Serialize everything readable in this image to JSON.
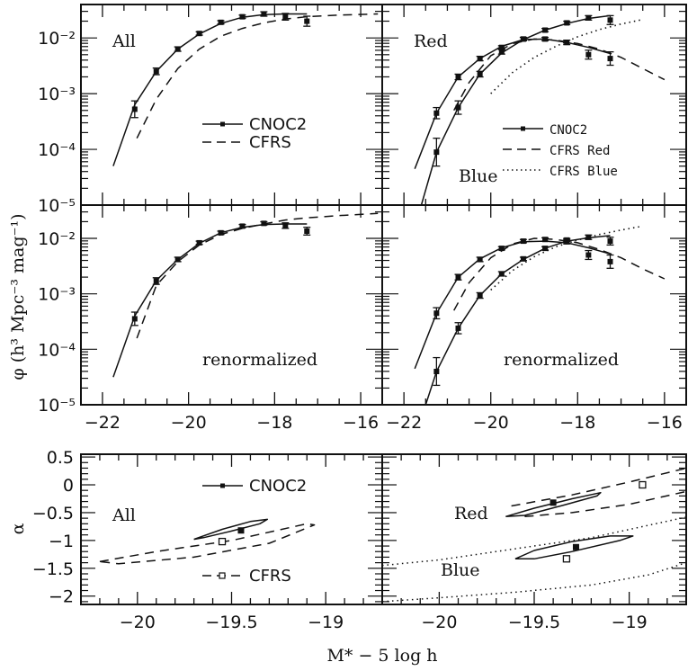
{
  "figure": {
    "ylabel_lf": "φ (h³ Mpc⁻³ mag⁻¹)",
    "ylabel_alpha": "α",
    "xlabel_bottom": "M* − 5 log h"
  },
  "colors": {
    "ink": "#111111",
    "background": "#ffffff"
  },
  "chart_data": [
    {
      "id": "lf-all",
      "type": "line",
      "title": "All",
      "xlim": [
        -22.5,
        -15.5
      ],
      "ylim_log10": [
        -5,
        -1.4
      ],
      "yscale": "log",
      "xticks": [
        -22,
        -20,
        -18,
        -16
      ],
      "yticks_labels": [
        "10⁻²",
        "10⁻³",
        "10⁻⁴",
        "10⁻⁵"
      ],
      "yticks": [
        -2,
        -3,
        -4,
        -5
      ],
      "legend": [
        {
          "label": "CNOC2",
          "style": "solid-marker"
        },
        {
          "label": "CFRS",
          "style": "dashed"
        }
      ],
      "series": [
        {
          "name": "CNOC2 data",
          "kind": "points",
          "x": [
            -21.25,
            -20.75,
            -20.25,
            -19.75,
            -19.25,
            -18.75,
            -18.25,
            -17.75,
            -17.25
          ],
          "log10y": [
            -3.28,
            -2.6,
            -2.2,
            -1.92,
            -1.72,
            -1.62,
            -1.57,
            -1.62,
            -1.7
          ],
          "err": [
            0.15,
            0.06,
            0.04,
            0.03,
            0.03,
            0.03,
            0.04,
            0.06,
            0.09
          ]
        },
        {
          "name": "CNOC2 fit",
          "kind": "line",
          "style": "solid",
          "x": [
            -21.75,
            -21.25,
            -20.75,
            -20.25,
            -19.75,
            -19.25,
            -18.75,
            -18.25,
            -17.75,
            -17.25
          ],
          "log10y": [
            -4.3,
            -3.2,
            -2.6,
            -2.2,
            -1.93,
            -1.74,
            -1.63,
            -1.58,
            -1.57,
            -1.57
          ]
        },
        {
          "name": "CFRS",
          "kind": "line",
          "style": "dashed",
          "x": [
            -21.2,
            -20.75,
            -20.25,
            -19.75,
            -19.25,
            -18.75,
            -18.25,
            -17.75,
            -17.25,
            -16.5,
            -15.6
          ],
          "log10y": [
            -3.8,
            -3.1,
            -2.55,
            -2.2,
            -1.97,
            -1.83,
            -1.73,
            -1.66,
            -1.62,
            -1.59,
            -1.57
          ]
        }
      ]
    },
    {
      "id": "lf-red-blue",
      "type": "line",
      "title": "Red",
      "subtitle": "Blue",
      "xlim": [
        -22.5,
        -15.5
      ],
      "ylim_log10": [
        -5,
        -1.4
      ],
      "yscale": "log",
      "xticks": [
        -22,
        -20,
        -18,
        -16
      ],
      "yticks": [
        -2,
        -3,
        -4,
        -5
      ],
      "legend": [
        {
          "label": "CNOC2",
          "style": "solid-marker"
        },
        {
          "label": "CFRS Red",
          "style": "dashed"
        },
        {
          "label": "CFRS Blue",
          "style": "dotted"
        }
      ],
      "series": [
        {
          "name": "CNOC2 Red data",
          "kind": "points",
          "x": [
            -21.25,
            -20.75,
            -20.25,
            -19.75,
            -19.25,
            -18.75,
            -18.25,
            -17.75,
            -17.25
          ],
          "log10y": [
            -3.35,
            -2.7,
            -2.37,
            -2.17,
            -2.02,
            -2.02,
            -2.08,
            -2.3,
            -2.37
          ],
          "err": [
            0.1,
            0.05,
            0.04,
            0.03,
            0.03,
            0.03,
            0.04,
            0.08,
            0.12
          ]
        },
        {
          "name": "CNOC2 Red fit",
          "kind": "line",
          "style": "solid",
          "x": [
            -21.75,
            -21.25,
            -20.75,
            -20.25,
            -19.75,
            -19.25,
            -18.75,
            -18.25,
            -17.75,
            -17.25
          ],
          "log10y": [
            -4.35,
            -3.35,
            -2.7,
            -2.37,
            -2.15,
            -2.03,
            -2.02,
            -2.08,
            -2.17,
            -2.28
          ]
        },
        {
          "name": "CNOC2 Blue data",
          "kind": "points",
          "x": [
            -21.25,
            -20.75,
            -20.25,
            -19.75,
            -19.25,
            -18.75,
            -18.25,
            -17.75,
            -17.25
          ],
          "log10y": [
            -4.05,
            -3.25,
            -2.65,
            -2.25,
            -2.02,
            -1.86,
            -1.73,
            -1.64,
            -1.68
          ],
          "err": [
            0.25,
            0.12,
            0.05,
            0.04,
            0.03,
            0.03,
            0.03,
            0.04,
            0.08
          ]
        },
        {
          "name": "CNOC2 Blue fit",
          "kind": "line",
          "style": "solid",
          "x": [
            -21.6,
            -21.25,
            -20.75,
            -20.25,
            -19.75,
            -19.25,
            -18.75,
            -18.25,
            -17.75,
            -17.25
          ],
          "log10y": [
            -5.0,
            -4.05,
            -3.25,
            -2.65,
            -2.27,
            -2.03,
            -1.86,
            -1.74,
            -1.65,
            -1.6
          ]
        },
        {
          "name": "CFRS Red",
          "kind": "line",
          "style": "dashed",
          "x": [
            -20.85,
            -20.5,
            -20.0,
            -19.5,
            -19.0,
            -18.5,
            -18.0,
            -17.5,
            -17.0,
            -16.5,
            -16.0
          ],
          "log10y": [
            -3.3,
            -2.8,
            -2.32,
            -2.1,
            -2.02,
            -2.04,
            -2.1,
            -2.2,
            -2.35,
            -2.55,
            -2.75
          ]
        },
        {
          "name": "CFRS Blue",
          "kind": "line",
          "style": "dotted",
          "x": [
            -20.0,
            -19.5,
            -19.0,
            -18.5,
            -18.0,
            -17.5,
            -17.0,
            -16.5
          ],
          "log10y": [
            -3.0,
            -2.62,
            -2.35,
            -2.15,
            -1.98,
            -1.85,
            -1.75,
            -1.67
          ]
        }
      ]
    },
    {
      "id": "lf-all-renorm",
      "type": "line",
      "annotation": "renormalized",
      "xlim": [
        -22.5,
        -15.5
      ],
      "ylim_log10": [
        -5,
        -1.4
      ],
      "yscale": "log",
      "xticks": [
        -22,
        -20,
        -18,
        -16
      ],
      "xtick_labels": [
        "−22",
        "−20",
        "−18",
        "−16"
      ],
      "yticks": [
        -2,
        -3,
        -4,
        -5
      ],
      "yticks_labels": [
        "10⁻²",
        "10⁻³",
        "10⁻⁴",
        "10⁻⁵"
      ],
      "series": [
        {
          "name": "CNOC2 data",
          "kind": "points",
          "x": [
            -21.25,
            -20.75,
            -20.25,
            -19.75,
            -19.25,
            -18.75,
            -18.25,
            -17.75,
            -17.25
          ],
          "log10y": [
            -3.45,
            -2.77,
            -2.38,
            -2.08,
            -1.9,
            -1.78,
            -1.73,
            -1.77,
            -1.87
          ],
          "err": [
            0.12,
            0.06,
            0.04,
            0.03,
            0.03,
            0.03,
            0.03,
            0.05,
            0.07
          ]
        },
        {
          "name": "CNOC2 fit",
          "kind": "line",
          "style": "solid",
          "x": [
            -21.75,
            -21.25,
            -20.75,
            -20.25,
            -19.75,
            -19.25,
            -18.75,
            -18.25,
            -17.75,
            -17.25
          ],
          "log10y": [
            -4.5,
            -3.4,
            -2.76,
            -2.38,
            -2.09,
            -1.9,
            -1.8,
            -1.75,
            -1.74,
            -1.74
          ]
        },
        {
          "name": "CFRS",
          "kind": "line",
          "style": "dashed",
          "x": [
            -21.2,
            -20.75,
            -20.25,
            -19.75,
            -19.25,
            -18.75,
            -18.25,
            -17.75,
            -17.25,
            -16.5,
            -15.6
          ],
          "log10y": [
            -3.8,
            -2.85,
            -2.42,
            -2.12,
            -1.93,
            -1.82,
            -1.74,
            -1.67,
            -1.63,
            -1.59,
            -1.55
          ]
        }
      ]
    },
    {
      "id": "lf-red-blue-renorm",
      "type": "line",
      "annotation": "renormalized",
      "xlim": [
        -22.5,
        -15.5
      ],
      "ylim_log10": [
        -5,
        -1.4
      ],
      "yscale": "log",
      "xticks": [
        -22,
        -20,
        -18,
        -16
      ],
      "xtick_labels": [
        "−22",
        "−20",
        "−18",
        "−16"
      ],
      "yticks": [
        -2,
        -3,
        -4,
        -5
      ],
      "series": [
        {
          "name": "CNOC2 Red data",
          "kind": "points",
          "x": [
            -21.25,
            -20.75,
            -20.25,
            -19.75,
            -19.25,
            -18.75,
            -18.25,
            -17.75,
            -17.25
          ],
          "log10y": [
            -3.35,
            -2.7,
            -2.38,
            -2.18,
            -2.05,
            -2.02,
            -2.06,
            -2.3,
            -2.42
          ],
          "err": [
            0.1,
            0.05,
            0.04,
            0.03,
            0.03,
            0.03,
            0.04,
            0.08,
            0.12
          ]
        },
        {
          "name": "CNOC2 Red fit",
          "kind": "line",
          "style": "solid",
          "x": [
            -21.75,
            -21.25,
            -20.75,
            -20.25,
            -19.75,
            -19.25,
            -18.75,
            -18.25,
            -17.75,
            -17.25
          ],
          "log10y": [
            -4.35,
            -3.35,
            -2.7,
            -2.37,
            -2.17,
            -2.06,
            -2.05,
            -2.08,
            -2.17,
            -2.28
          ]
        },
        {
          "name": "CNOC2 Blue data",
          "kind": "points",
          "x": [
            -21.25,
            -20.75,
            -20.25,
            -19.75,
            -19.25,
            -18.75,
            -18.25,
            -17.75,
            -17.25
          ],
          "log10y": [
            -4.4,
            -3.62,
            -3.03,
            -2.64,
            -2.37,
            -2.18,
            -2.03,
            -1.98,
            -2.05
          ],
          "err": [
            0.25,
            0.1,
            0.05,
            0.04,
            0.03,
            0.03,
            0.03,
            0.04,
            0.07
          ]
        },
        {
          "name": "CNOC2 Blue fit",
          "kind": "line",
          "style": "solid",
          "x": [
            -21.5,
            -21.25,
            -20.75,
            -20.25,
            -19.75,
            -19.25,
            -18.75,
            -18.25,
            -17.75,
            -17.25
          ],
          "log10y": [
            -5.0,
            -4.4,
            -3.62,
            -3.03,
            -2.64,
            -2.38,
            -2.18,
            -2.05,
            -1.99,
            -1.95
          ]
        },
        {
          "name": "CFRS Red",
          "kind": "line",
          "style": "dashed",
          "x": [
            -20.85,
            -20.5,
            -20.0,
            -19.5,
            -19.0,
            -18.5,
            -18.0,
            -17.5,
            -17.0,
            -16.5,
            -16.0
          ],
          "log10y": [
            -3.3,
            -2.8,
            -2.35,
            -2.1,
            -2.0,
            -2.02,
            -2.08,
            -2.2,
            -2.35,
            -2.55,
            -2.73
          ]
        },
        {
          "name": "CFRS Blue",
          "kind": "line",
          "style": "dotted",
          "x": [
            -20.0,
            -19.5,
            -19.0,
            -18.5,
            -18.0,
            -17.5,
            -17.0,
            -16.5
          ],
          "log10y": [
            -2.93,
            -2.58,
            -2.33,
            -2.15,
            -2.03,
            -1.93,
            -1.85,
            -1.78
          ]
        }
      ]
    },
    {
      "id": "alpha-all",
      "type": "scatter",
      "title": "All",
      "xlim": [
        -20.3,
        -18.7
      ],
      "ylim": [
        -2.15,
        0.55
      ],
      "xticks": [
        -20,
        -19.5,
        -19
      ],
      "xtick_labels": [
        "−20",
        "−19.5",
        "−19"
      ],
      "yticks": [
        0.5,
        0,
        -0.5,
        -1,
        -1.5,
        -2
      ],
      "ytick_labels": [
        "0.5",
        "0",
        "−0.5",
        "−1",
        "−1.5",
        "−2"
      ],
      "legend": [
        {
          "label": "CNOC2",
          "style": "solid-filled-square"
        },
        {
          "label": "CFRS",
          "style": "dashed-open-square"
        }
      ],
      "points": [
        {
          "name": "CNOC2",
          "x": -19.45,
          "y": -0.82,
          "marker": "filled-square"
        },
        {
          "name": "CFRS",
          "x": -19.55,
          "y": -1.02,
          "marker": "open-square"
        }
      ],
      "ellipses": [
        {
          "name": "CNOC2 contour",
          "style": "solid",
          "path_x": [
            -19.7,
            -19.55,
            -19.4,
            -19.31,
            -19.35,
            -19.5,
            -19.65,
            -19.7
          ],
          "path_y": [
            -0.98,
            -0.8,
            -0.66,
            -0.62,
            -0.7,
            -0.83,
            -0.95,
            -0.98
          ]
        },
        {
          "name": "CFRS contour",
          "style": "dashed",
          "path_x": [
            -20.2,
            -19.9,
            -19.5,
            -19.1,
            -19.06,
            -19.3,
            -19.7,
            -20.1,
            -20.2
          ],
          "path_y": [
            -1.38,
            -1.2,
            -1.0,
            -0.7,
            -0.72,
            -1.05,
            -1.3,
            -1.42,
            -1.38
          ]
        }
      ]
    },
    {
      "id": "alpha-red-blue",
      "type": "scatter",
      "labels": [
        "Red",
        "Blue"
      ],
      "xlim": [
        -20.3,
        -18.7
      ],
      "ylim": [
        -2.15,
        0.55
      ],
      "xticks": [
        -20,
        -19.5,
        -19
      ],
      "xtick_labels": [
        "−20",
        "−19.5",
        "−19"
      ],
      "yticks": [
        0.5,
        0,
        -0.5,
        -1,
        -1.5,
        -2
      ],
      "points": [
        {
          "name": "CNOC2 Red",
          "x": -19.4,
          "y": -0.32,
          "marker": "filled-square"
        },
        {
          "name": "CFRS Red",
          "x": -18.93,
          "y": 0.0,
          "marker": "open-square"
        },
        {
          "name": "CNOC2 Blue",
          "x": -19.28,
          "y": -1.12,
          "marker": "filled-square"
        },
        {
          "name": "CFRS Blue",
          "x": -19.33,
          "y": -1.33,
          "marker": "open-square"
        }
      ],
      "ellipses": [
        {
          "name": "CNOC2 Red contour",
          "style": "solid",
          "path_x": [
            -19.65,
            -19.5,
            -19.3,
            -19.15,
            -19.17,
            -19.35,
            -19.55,
            -19.65
          ],
          "path_y": [
            -0.57,
            -0.42,
            -0.25,
            -0.14,
            -0.2,
            -0.37,
            -0.55,
            -0.57
          ]
        },
        {
          "name": "CFRS Red contour",
          "style": "dashed",
          "path_x": [
            -19.62,
            -19.3,
            -19.0,
            -18.7
          ],
          "path_y": [
            -0.38,
            -0.18,
            0.05,
            0.3
          ]
        },
        {
          "name": "CFRS Red contour lower",
          "style": "dashed",
          "path_x": [
            -19.55,
            -19.3,
            -19.0,
            -18.7
          ],
          "path_y": [
            -0.57,
            -0.5,
            -0.35,
            -0.12
          ]
        },
        {
          "name": "CNOC2 Blue contour",
          "style": "solid",
          "path_x": [
            -19.6,
            -19.5,
            -19.3,
            -19.1,
            -18.98,
            -19.05,
            -19.3,
            -19.5,
            -19.6
          ],
          "path_y": [
            -1.33,
            -1.18,
            -1.02,
            -0.92,
            -0.92,
            -1.0,
            -1.2,
            -1.33,
            -1.33
          ]
        },
        {
          "name": "CFRS Blue contour upper",
          "style": "dotted",
          "path_x": [
            -20.3,
            -20.0,
            -19.6,
            -19.2,
            -18.7
          ],
          "path_y": [
            -1.45,
            -1.35,
            -1.15,
            -0.95,
            -0.58
          ]
        },
        {
          "name": "CFRS Blue contour lower",
          "style": "dotted",
          "path_x": [
            -20.3,
            -20.0,
            -19.6,
            -19.2,
            -18.9,
            -18.7
          ],
          "path_y": [
            -2.1,
            -2.03,
            -1.93,
            -1.8,
            -1.62,
            -1.4
          ]
        }
      ]
    }
  ]
}
